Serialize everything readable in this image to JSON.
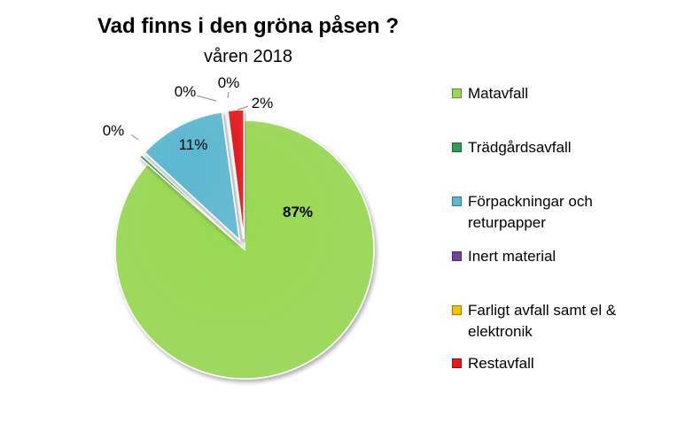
{
  "chart_data": {
    "type": "pie",
    "title": "Vad finns i den gröna påsen ?",
    "subtitle": "våren 2018",
    "slices": [
      {
        "label": "Matavfall",
        "value": 87,
        "data_label": "87%",
        "color": "#99d952"
      },
      {
        "label": "Trädgårdsavfall",
        "value": 0.4,
        "data_label": "0%",
        "color": "#2e9e55"
      },
      {
        "label": "Förpackningar och returpapper",
        "value": 11,
        "data_label": "11%",
        "color": "#5ab8d0"
      },
      {
        "label": "Inert material",
        "value": 0.1,
        "data_label": "0%",
        "color": "#7540a0"
      },
      {
        "label": "Farligt avfall samt el & elektronik",
        "value": 0.1,
        "data_label": "0%",
        "color": "#f2c200"
      },
      {
        "label": "Restavfall",
        "value": 2,
        "data_label": "2%",
        "color": "#e8191c"
      }
    ],
    "legend_position": "right",
    "exploded": true
  }
}
